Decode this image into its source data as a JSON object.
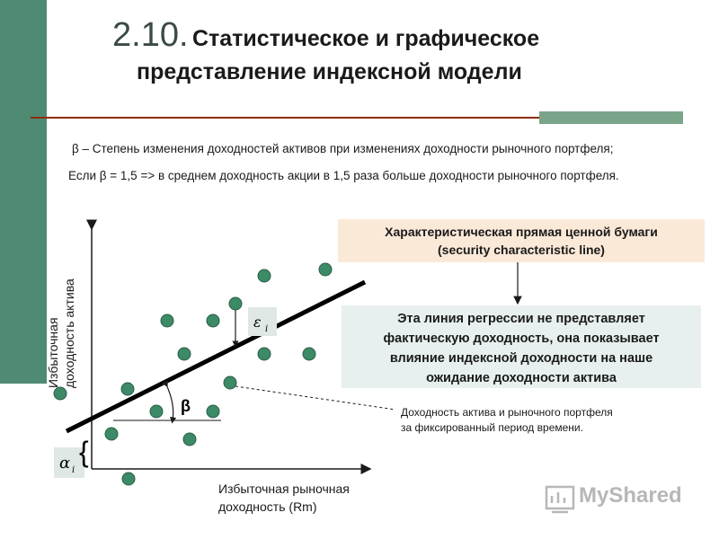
{
  "title": {
    "number": "2.10.",
    "line1": "Статистическое и графическое",
    "line2": "представление индексной модели"
  },
  "definitions": {
    "beta_def": "β – Степень изменения доходностей активов при изменениях доходности рыночного портфеля;",
    "beta_example": "Если β = 1,5 => в среднем доходность акции в 1,5 раза больше доходности рыночного портфеля."
  },
  "callouts": {
    "scl_line1": "Характеристическая прямая ценной бумаги",
    "scl_line2": "(security characteristic line)",
    "regression_line1": "Эта линия регрессии не представляет",
    "regression_line2": "фактическую доходность, она показывает",
    "regression_line3": "влияние индексной доходности на наше",
    "regression_line4": "ожидание доходности актива",
    "note_line1": "Доходность актива и рыночного портфеля",
    "note_line2": "за фиксированный период времени."
  },
  "chart": {
    "ylabel_line1": "Избыточная",
    "ylabel_line2": "доходность актива",
    "xlabel_line1": "Избыточная рыночная",
    "xlabel_line2": "доходность (Rm)",
    "beta_symbol": "β",
    "epsilon_symbol": "ε",
    "epsilon_sub": "i",
    "alpha_symbol": "α",
    "alpha_sub": "i",
    "brace": "{"
  },
  "logo": {
    "text": "MyShared"
  },
  "colors": {
    "accent_green": "#4f8a72",
    "dot_fill": "#3c8a66",
    "rule": "#8b2d0c"
  }
}
